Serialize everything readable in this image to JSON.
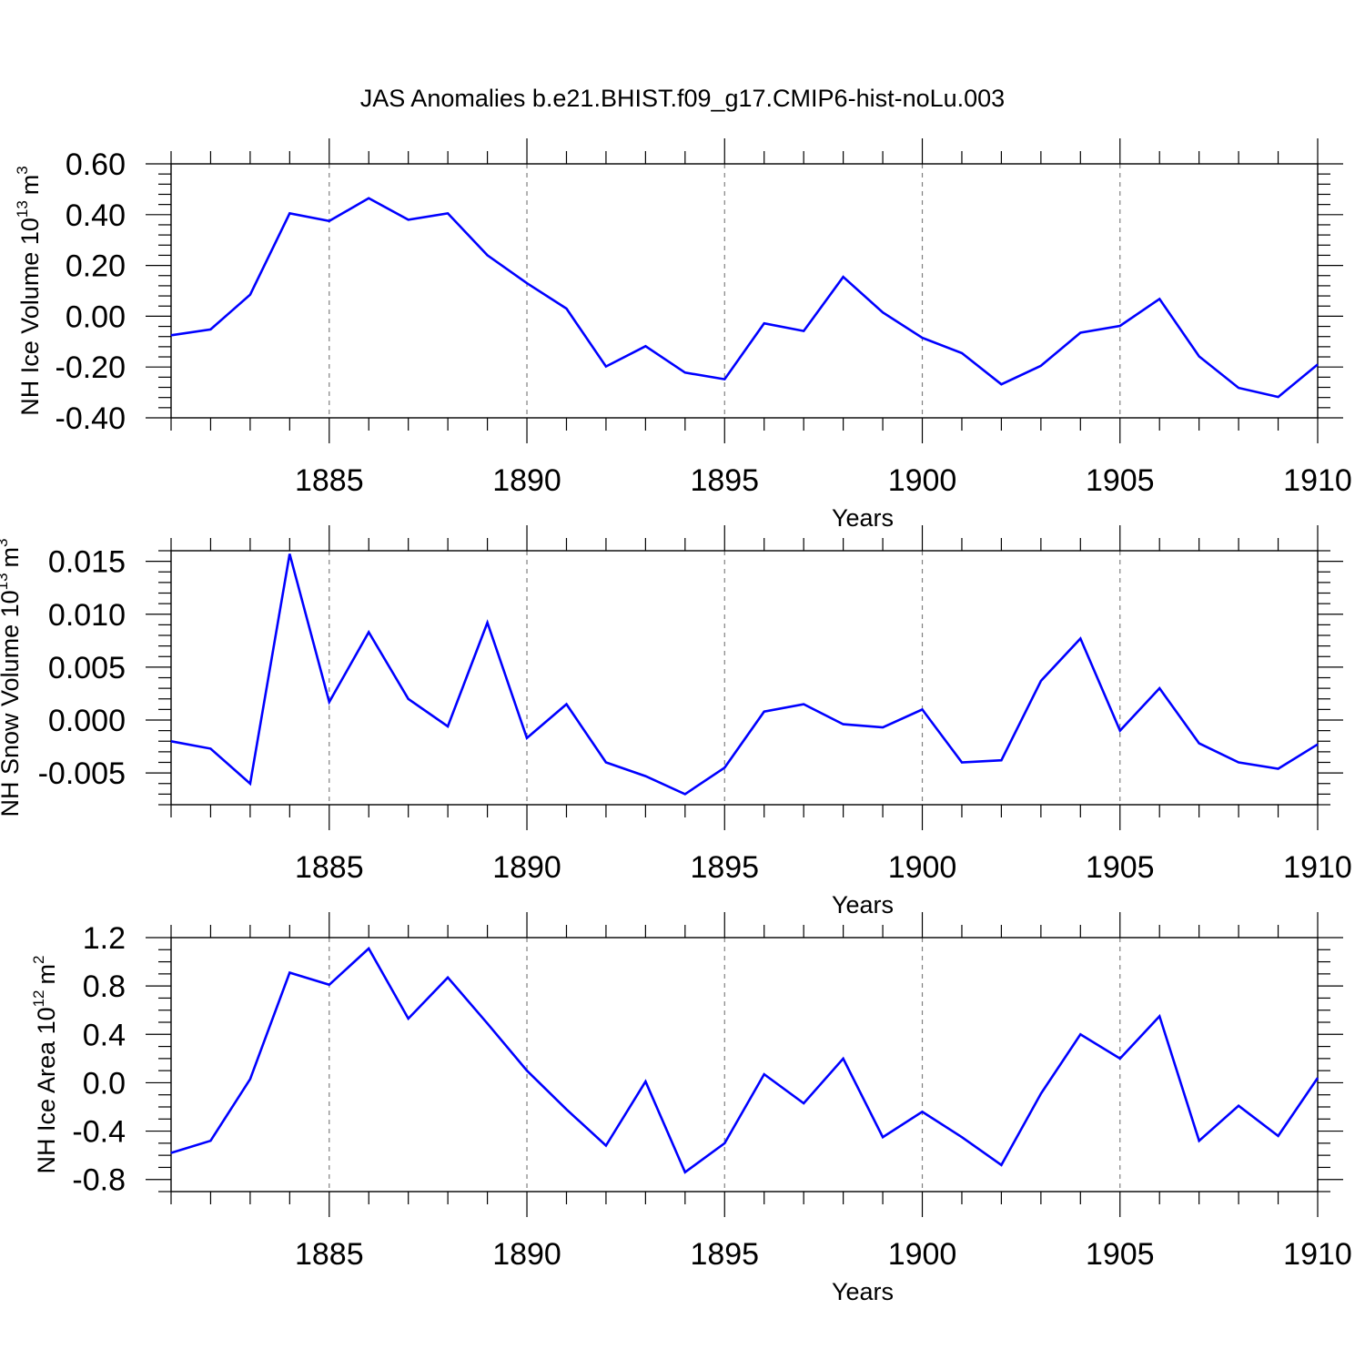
{
  "title": "JAS Anomalies b.e21.BHIST.f09_g17.CMIP6-hist-noLu.003",
  "chart_data": [
    {
      "type": "line",
      "title": "",
      "xlabel": "Years",
      "ylabel": {
        "main": "NH Ice Volume 10",
        "exponent": "13",
        "unit": "m",
        "unit_exponent": "3"
      },
      "xlim": [
        1881,
        1910
      ],
      "ylim": [
        -0.4,
        0.6
      ],
      "x_ticks": [
        1885,
        1890,
        1895,
        1900,
        1905,
        1910
      ],
      "x_tick_labels": [
        "1885",
        "1890",
        "1895",
        "1900",
        "1905",
        "1910"
      ],
      "y_ticks": [
        -0.4,
        -0.2,
        0.0,
        0.2,
        0.4,
        0.6
      ],
      "y_tick_labels": [
        "-0.40",
        "-0.20",
        "0.00",
        "0.20",
        "0.40",
        "0.60"
      ],
      "y_minor_step": 0.04,
      "grid": "vertical-dashed",
      "color": "#0000ff",
      "x": [
        1881,
        1882,
        1883,
        1884,
        1885,
        1886,
        1887,
        1888,
        1889,
        1890,
        1891,
        1892,
        1893,
        1894,
        1895,
        1896,
        1897,
        1898,
        1899,
        1900,
        1901,
        1902,
        1903,
        1904,
        1905,
        1906,
        1907,
        1908,
        1909,
        1910
      ],
      "y": [
        -0.075,
        -0.052,
        0.085,
        0.405,
        0.375,
        0.465,
        0.38,
        0.405,
        0.24,
        0.13,
        0.03,
        -0.198,
        -0.118,
        -0.222,
        -0.248,
        -0.028,
        -0.058,
        0.155,
        0.015,
        -0.085,
        -0.145,
        -0.268,
        -0.195,
        -0.065,
        -0.038,
        0.068,
        -0.158,
        -0.282,
        -0.318,
        -0.19
      ]
    },
    {
      "type": "line",
      "title": "",
      "xlabel": "Years",
      "ylabel": {
        "main": "NH Snow Volume 10",
        "exponent": "13",
        "unit": "m",
        "unit_exponent": "3"
      },
      "xlim": [
        1881,
        1910
      ],
      "ylim": [
        -0.008,
        0.016
      ],
      "x_ticks": [
        1885,
        1890,
        1895,
        1900,
        1905,
        1910
      ],
      "x_tick_labels": [
        "1885",
        "1890",
        "1895",
        "1900",
        "1905",
        "1910"
      ],
      "y_ticks": [
        -0.005,
        0.0,
        0.005,
        0.01,
        0.015
      ],
      "y_tick_labels": [
        "-0.005",
        "0.000",
        "0.005",
        "0.010",
        "0.015"
      ],
      "y_minor_step": 0.001,
      "grid": "vertical-dashed",
      "color": "#0000ff",
      "x": [
        1881,
        1882,
        1883,
        1884,
        1885,
        1886,
        1887,
        1888,
        1889,
        1890,
        1891,
        1892,
        1893,
        1894,
        1895,
        1896,
        1897,
        1898,
        1899,
        1900,
        1901,
        1902,
        1903,
        1904,
        1905,
        1906,
        1907,
        1908,
        1909,
        1910
      ],
      "y": [
        -0.002,
        -0.0027,
        -0.006,
        0.0157,
        0.0017,
        0.0083,
        0.002,
        -0.0006,
        0.0092,
        -0.0017,
        0.0015,
        -0.004,
        -0.0053,
        -0.007,
        -0.0045,
        0.0008,
        0.0015,
        -0.0004,
        -0.0007,
        0.001,
        -0.004,
        -0.0038,
        0.0037,
        0.0077,
        -0.001,
        0.003,
        -0.0022,
        -0.004,
        -0.0046,
        -0.0023
      ]
    },
    {
      "type": "line",
      "title": "",
      "xlabel": "Years",
      "ylabel": {
        "main": "NH Ice Area 10",
        "exponent": "12",
        "unit": "m",
        "unit_exponent": "2"
      },
      "xlim": [
        1881,
        1910
      ],
      "ylim": [
        -0.9,
        1.2
      ],
      "x_ticks": [
        1885,
        1890,
        1895,
        1900,
        1905,
        1910
      ],
      "x_tick_labels": [
        "1885",
        "1890",
        "1895",
        "1900",
        "1905",
        "1910"
      ],
      "y_ticks": [
        -0.8,
        -0.4,
        0.0,
        0.4,
        0.8,
        1.2
      ],
      "y_tick_labels": [
        "-0.8",
        "-0.4",
        "0.0",
        "0.4",
        "0.8",
        "1.2"
      ],
      "y_minor_step": 0.1,
      "grid": "vertical-dashed",
      "color": "#0000ff",
      "x": [
        1881,
        1882,
        1883,
        1884,
        1885,
        1886,
        1887,
        1888,
        1889,
        1890,
        1891,
        1892,
        1893,
        1894,
        1895,
        1896,
        1897,
        1898,
        1899,
        1900,
        1901,
        1902,
        1903,
        1904,
        1905,
        1906,
        1907,
        1908,
        1909,
        1910
      ],
      "y": [
        -0.58,
        -0.48,
        0.03,
        0.91,
        0.81,
        1.11,
        0.53,
        0.87,
        0.49,
        0.1,
        -0.22,
        -0.52,
        0.01,
        -0.74,
        -0.5,
        0.07,
        -0.17,
        0.2,
        -0.45,
        -0.24,
        -0.45,
        -0.68,
        -0.09,
        0.4,
        0.2,
        0.55,
        -0.48,
        -0.19,
        -0.44,
        0.04
      ]
    }
  ]
}
